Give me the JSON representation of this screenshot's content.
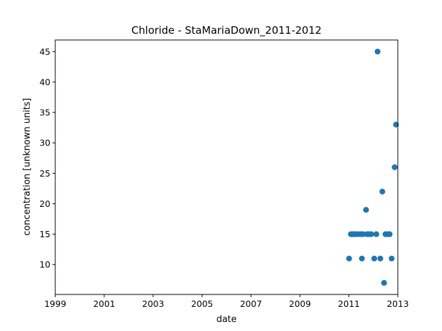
{
  "chart_data": {
    "type": "scatter",
    "title": "Chloride - StaMariaDown_2011-2012",
    "xlabel": "date",
    "ylabel": "concentration [unknown units]",
    "xlim": [
      "1999-01-01",
      "2013-01-01"
    ],
    "ylim": [
      5.1,
      46.9
    ],
    "x_ticks": [
      "1999",
      "2001",
      "2003",
      "2005",
      "2007",
      "2009",
      "2011",
      "2013"
    ],
    "y_ticks": [
      10,
      15,
      20,
      25,
      30,
      35,
      40,
      45
    ],
    "grid": false,
    "legend": "none",
    "marker_color": "#1f77b4",
    "points": [
      {
        "x": "2011-01-05",
        "y": 11
      },
      {
        "x": "2011-02-01",
        "y": 15
      },
      {
        "x": "2011-02-24",
        "y": 15
      },
      {
        "x": "2011-03-17",
        "y": 15
      },
      {
        "x": "2011-04-15",
        "y": 15
      },
      {
        "x": "2011-05-14",
        "y": 15
      },
      {
        "x": "2011-06-24",
        "y": 15
      },
      {
        "x": "2011-07-15",
        "y": 11
      },
      {
        "x": "2011-08-01",
        "y": 15
      },
      {
        "x": "2011-09-15",
        "y": 19
      },
      {
        "x": "2011-10-01",
        "y": 15
      },
      {
        "x": "2011-11-01",
        "y": 15
      },
      {
        "x": "2011-12-01",
        "y": 15
      },
      {
        "x": "2012-01-15",
        "y": 11
      },
      {
        "x": "2012-02-15",
        "y": 15
      },
      {
        "x": "2012-03-05",
        "y": 45
      },
      {
        "x": "2012-04-15",
        "y": 11
      },
      {
        "x": "2012-05-15",
        "y": 22
      },
      {
        "x": "2012-06-10",
        "y": 7
      },
      {
        "x": "2012-07-01",
        "y": 15
      },
      {
        "x": "2012-08-01",
        "y": 15
      },
      {
        "x": "2012-09-01",
        "y": 15
      },
      {
        "x": "2012-10-01",
        "y": 11
      },
      {
        "x": "2012-11-15",
        "y": 26
      },
      {
        "x": "2012-12-05",
        "y": 33
      }
    ]
  }
}
